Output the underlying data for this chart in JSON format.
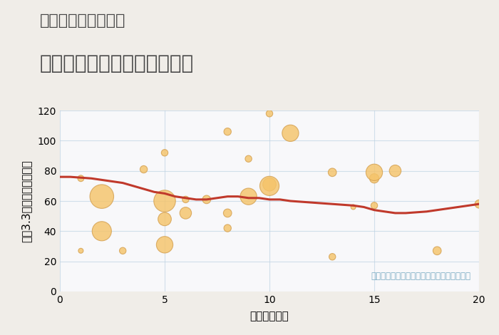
{
  "title_line1": "三重県伊賀市小杉の",
  "title_line2": "駅距離別中古マンション価格",
  "xlabel": "駅距離（分）",
  "ylabel": "坪（3.3㎡）単価（万円）",
  "background_color": "#f0ede8",
  "plot_bg_color": "#f8f8fa",
  "xlim": [
    0,
    20
  ],
  "ylim": [
    0,
    120
  ],
  "xticks": [
    0,
    5,
    10,
    15,
    20
  ],
  "yticks": [
    0,
    20,
    40,
    60,
    80,
    100,
    120
  ],
  "scatter_x": [
    1,
    1,
    2,
    2,
    3,
    4,
    5,
    5,
    5,
    5,
    6,
    6,
    7,
    8,
    8,
    8,
    9,
    9,
    10,
    10,
    10,
    11,
    13,
    13,
    14,
    15,
    15,
    15,
    16,
    18,
    20
  ],
  "scatter_y": [
    27,
    75,
    40,
    63,
    27,
    81,
    92,
    60,
    48,
    31,
    61,
    52,
    61,
    106,
    42,
    52,
    88,
    63,
    71,
    70,
    118,
    105,
    79,
    23,
    56,
    75,
    79,
    57,
    80,
    27,
    58
  ],
  "scatter_size": [
    25,
    40,
    380,
    580,
    45,
    55,
    45,
    480,
    180,
    280,
    45,
    140,
    70,
    55,
    55,
    70,
    45,
    280,
    180,
    380,
    45,
    280,
    70,
    45,
    25,
    90,
    280,
    45,
    140,
    70,
    70
  ],
  "scatter_color": "#f5c46a",
  "scatter_alpha": 0.82,
  "scatter_edge_color": "#d4a050",
  "scatter_edge_width": 0.8,
  "trend_x": [
    0,
    0.5,
    1,
    1.5,
    2,
    2.5,
    3,
    3.5,
    4,
    4.5,
    5,
    5.5,
    6,
    6.5,
    7,
    7.5,
    8,
    8.5,
    9,
    9.5,
    10,
    10.5,
    11,
    11.5,
    12,
    12.5,
    13,
    13.5,
    14,
    14.5,
    15,
    15.5,
    16,
    16.5,
    17,
    17.5,
    18,
    18.5,
    19,
    19.5,
    20
  ],
  "trend_y": [
    76,
    76,
    75.5,
    75,
    74,
    73,
    72,
    70,
    68,
    66,
    65,
    63,
    62,
    61,
    61,
    62,
    63,
    63,
    62,
    62,
    61,
    61,
    60,
    59.5,
    59,
    58.5,
    58,
    57.5,
    57,
    56,
    54,
    53,
    52,
    52,
    52.5,
    53,
    54,
    55,
    56,
    57,
    58
  ],
  "trend_color": "#c0392b",
  "trend_linewidth": 2.2,
  "annotation": "円の大きさは、取引のあった物件面積を示す",
  "annotation_color": "#7bacc4",
  "annotation_fontsize": 8.5,
  "grid_color": "#b8cfe0",
  "grid_alpha": 0.6,
  "title_color": "#444444",
  "title_fontsize1": 16,
  "title_fontsize2": 20,
  "tick_fontsize": 10,
  "label_fontsize": 11
}
